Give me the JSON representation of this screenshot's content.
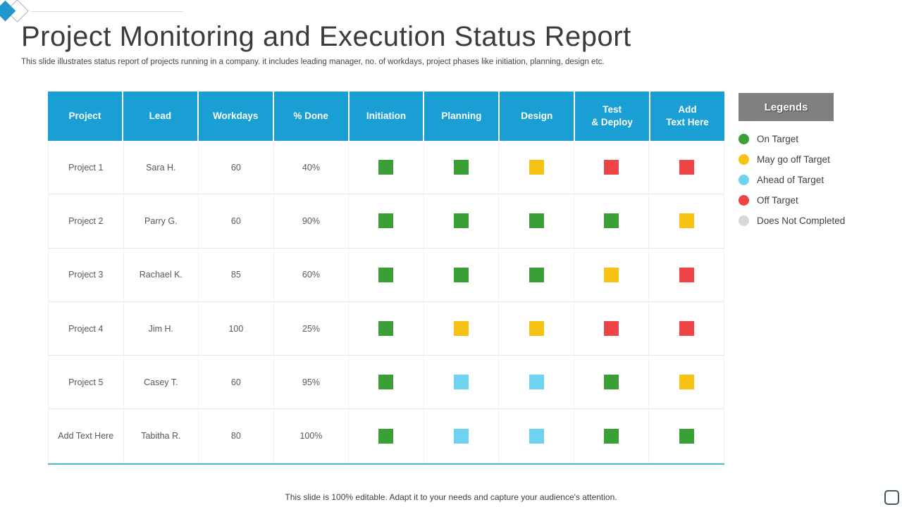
{
  "slide": {
    "title": "Project Monitoring and Execution Status Report",
    "subtitle": "This slide illustrates status report of projects running in a company. it includes leading manager, no. of workdays, project phases like initiation, planning, design etc.",
    "footer": "This slide is 100% editable. Adapt it to your needs and capture your audience's attention."
  },
  "colors": {
    "header_blue": "#1A9FD5",
    "green": "#3AA035",
    "yellow": "#F6C315",
    "blue": "#70D2F1",
    "red": "#EF4446",
    "gray": "#D8D8D8",
    "legend_header_bg": "#7F7F7F",
    "logo_blue": "#2297CE"
  },
  "table": {
    "columns": [
      "Project",
      "Lead",
      "Workdays",
      "% Done",
      "Initiation",
      "Planning",
      "Design",
      "Test\n& Deploy",
      "Add\nText Here"
    ],
    "rows": [
      {
        "project": "Project 1",
        "lead": "Sara H.",
        "workdays": "60",
        "done": "40%",
        "statuses": [
          "green",
          "green",
          "yellow",
          "red",
          "red"
        ]
      },
      {
        "project": "Project 2",
        "lead": "Parry G.",
        "workdays": "60",
        "done": "90%",
        "statuses": [
          "green",
          "green",
          "green",
          "green",
          "yellow"
        ]
      },
      {
        "project": "Project 3",
        "lead": "Rachael K.",
        "workdays": "85",
        "done": "60%",
        "statuses": [
          "green",
          "green",
          "green",
          "yellow",
          "red"
        ]
      },
      {
        "project": "Project 4",
        "lead": "Jim H.",
        "workdays": "100",
        "done": "25%",
        "statuses": [
          "green",
          "yellow",
          "yellow",
          "red",
          "red"
        ]
      },
      {
        "project": "Project 5",
        "lead": "Casey T.",
        "workdays": "60",
        "done": "95%",
        "statuses": [
          "green",
          "blue",
          "blue",
          "green",
          "yellow"
        ]
      },
      {
        "project": "Add Text Here",
        "lead": "Tabitha R.",
        "workdays": "80",
        "done": "100%",
        "statuses": [
          "green",
          "blue",
          "blue",
          "green",
          "green"
        ]
      }
    ]
  },
  "legend": {
    "header": "Legends",
    "items": [
      {
        "label": "On Target",
        "color_key": "green"
      },
      {
        "label": "May go off Target",
        "color_key": "yellow"
      },
      {
        "label": "Ahead of Target",
        "color_key": "blue"
      },
      {
        "label": "Off Target",
        "color_key": "red"
      },
      {
        "label": "Does Not Completed",
        "color_key": "gray"
      }
    ]
  }
}
